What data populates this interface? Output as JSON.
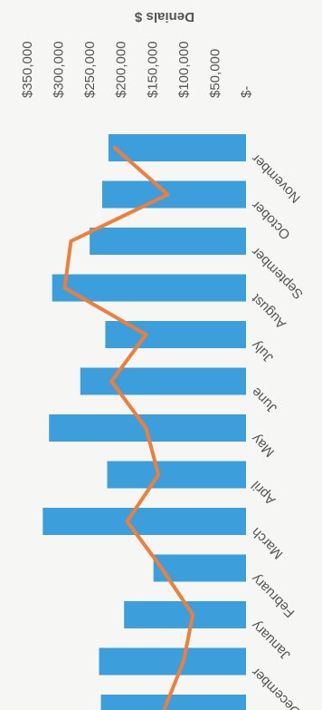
{
  "chart_data": {
    "type": "bar",
    "orientation": "horizontal",
    "rotated": "180deg",
    "ylabel": "Denials $",
    "categories": [
      "November",
      "October",
      "September",
      "August",
      "July",
      "June",
      "May",
      "April",
      "March",
      "February",
      "January",
      "December",
      "ber"
    ],
    "x_tick_labels": [
      "$350,000",
      "$300,000",
      "$250,000",
      "$200,000",
      "$150,000",
      "$100,000",
      "$50,000",
      "$-"
    ],
    "xlim": [
      0,
      350000
    ],
    "series": [
      {
        "type": "bar",
        "color": "#3c9fdc",
        "values": [
          220000,
          230000,
          250000,
          310000,
          225000,
          265000,
          315000,
          222000,
          325000,
          148000,
          195000,
          235000,
          232000
        ]
      },
      {
        "type": "line",
        "color": "#ec7e3e",
        "values": [
          210000,
          125000,
          280000,
          290000,
          160000,
          215000,
          160000,
          140000,
          190000,
          135000,
          85000,
          100000,
          130000
        ]
      }
    ],
    "grid": false,
    "legend": "none"
  }
}
